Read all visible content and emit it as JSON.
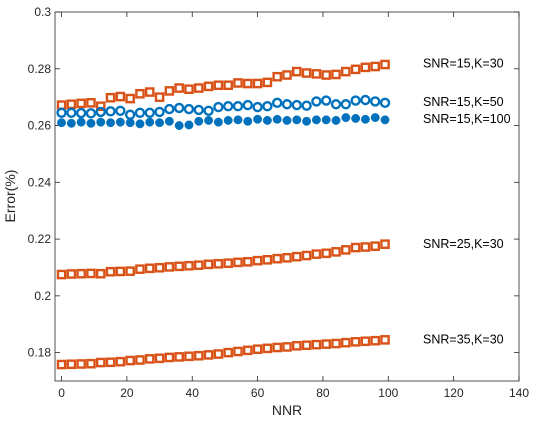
{
  "chart_data": {
    "type": "scatter",
    "title": "",
    "xlabel": "NNR",
    "ylabel": "Error(%)",
    "xlim": [
      -2,
      140
    ],
    "ylim": [
      0.17,
      0.3
    ],
    "xticks": [
      0,
      20,
      40,
      60,
      80,
      100,
      120,
      140
    ],
    "yticks": [
      0.18,
      0.2,
      0.22,
      0.24,
      0.26,
      0.28,
      0.3
    ],
    "xtick_labels": [
      "0",
      "20",
      "40",
      "60",
      "80",
      "100",
      "120",
      "140"
    ],
    "ytick_labels": [
      "0.18",
      "0.2",
      "0.22",
      "0.24",
      "0.26",
      "0.28",
      "0.3"
    ],
    "grid": false,
    "legend": "none",
    "x": [
      0,
      3,
      6,
      9,
      12,
      15,
      18,
      21,
      24,
      27,
      30,
      33,
      36,
      39,
      42,
      45,
      48,
      51,
      54,
      57,
      60,
      63,
      66,
      69,
      72,
      75,
      78,
      81,
      84,
      87,
      90,
      93,
      96,
      99
    ],
    "series": [
      {
        "name": "SNR=15,K=30",
        "marker": "square",
        "color": "#D95319",
        "values": [
          0.2672,
          0.2675,
          0.2678,
          0.268,
          0.2668,
          0.2698,
          0.2702,
          0.2695,
          0.2712,
          0.2718,
          0.27,
          0.2722,
          0.2732,
          0.2728,
          0.2732,
          0.2738,
          0.2742,
          0.2742,
          0.275,
          0.2748,
          0.2748,
          0.2752,
          0.2772,
          0.2778,
          0.279,
          0.2785,
          0.2782,
          0.2778,
          0.278,
          0.279,
          0.2798,
          0.2805,
          0.2808,
          0.2815
        ]
      },
      {
        "name": "SNR=15,K=50",
        "marker": "circle-open",
        "color": "#0072BD",
        "values": [
          0.2645,
          0.2645,
          0.2644,
          0.2643,
          0.2648,
          0.265,
          0.2652,
          0.2638,
          0.2645,
          0.2645,
          0.2648,
          0.2658,
          0.2662,
          0.2658,
          0.2655,
          0.2652,
          0.2665,
          0.2668,
          0.2668,
          0.2672,
          0.2665,
          0.2668,
          0.268,
          0.2675,
          0.2672,
          0.267,
          0.2685,
          0.2688,
          0.2675,
          0.2675,
          0.2688,
          0.269,
          0.2685,
          0.268
        ]
      },
      {
        "name": "SNR=15,K=100",
        "marker": "circle-filled",
        "color": "#0072BD",
        "values": [
          0.261,
          0.2608,
          0.2612,
          0.2608,
          0.2612,
          0.261,
          0.2612,
          0.261,
          0.2606,
          0.2612,
          0.261,
          0.2615,
          0.26,
          0.2602,
          0.2615,
          0.2618,
          0.2612,
          0.2618,
          0.262,
          0.2615,
          0.2622,
          0.2618,
          0.2622,
          0.2618,
          0.262,
          0.2615,
          0.262,
          0.262,
          0.2618,
          0.2628,
          0.2625,
          0.2622,
          0.2628,
          0.262
        ]
      },
      {
        "name": "SNR=25,K=30",
        "marker": "square",
        "color": "#D95319",
        "values": [
          0.2075,
          0.2077,
          0.2078,
          0.2079,
          0.2078,
          0.2085,
          0.2086,
          0.2087,
          0.2094,
          0.2097,
          0.2099,
          0.2102,
          0.2104,
          0.2106,
          0.2108,
          0.2111,
          0.2113,
          0.2115,
          0.2118,
          0.212,
          0.2124,
          0.2127,
          0.2131,
          0.2134,
          0.2138,
          0.2142,
          0.2147,
          0.215,
          0.2155,
          0.2162,
          0.217,
          0.2172,
          0.2175,
          0.2182
        ]
      },
      {
        "name": "SNR=35,K=30",
        "marker": "square",
        "color": "#D95319",
        "values": [
          0.1758,
          0.1759,
          0.176,
          0.1761,
          0.1765,
          0.1766,
          0.1768,
          0.1772,
          0.1774,
          0.1778,
          0.178,
          0.1783,
          0.1785,
          0.1787,
          0.1789,
          0.1792,
          0.1795,
          0.18,
          0.1804,
          0.1808,
          0.1812,
          0.1815,
          0.1818,
          0.182,
          0.1824,
          0.1826,
          0.1828,
          0.183,
          0.1832,
          0.1835,
          0.1838,
          0.184,
          0.1842,
          0.1845
        ]
      }
    ],
    "series_label_anchor_y": [
      0.282,
      0.2685,
      0.2625,
      0.2185,
      0.1848
    ]
  }
}
